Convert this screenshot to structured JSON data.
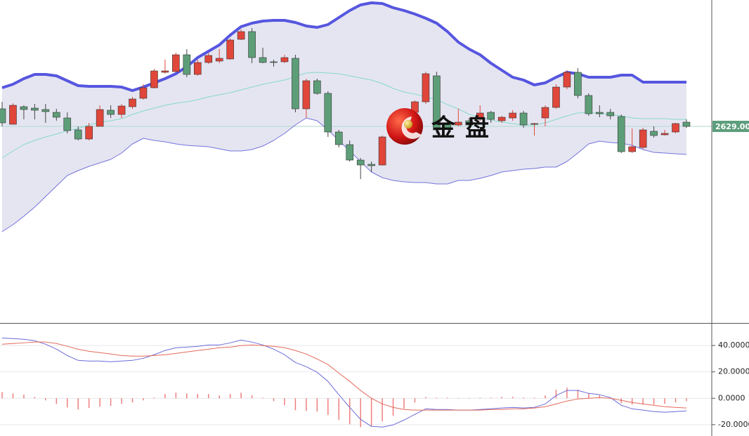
{
  "chart_data": [
    {
      "type": "candlestick",
      "ylim": [
        2349,
        2809
      ],
      "up_color": "#e0463a",
      "down_color": "#5d9e78",
      "open": [
        2654,
        2632,
        2657,
        2655,
        2653,
        2649,
        2641,
        2624,
        2611,
        2629,
        2652,
        2646,
        2657,
        2669,
        2684,
        2706,
        2707,
        2731,
        2703,
        2720,
        2722,
        2725,
        2753,
        2764,
        2727,
        2721,
        2721,
        2726,
        2654,
        2694,
        2676,
        2621,
        2603,
        2581,
        2575,
        2574,
        2614,
        2641,
        2649,
        2664,
        2701,
        2634,
        2631,
        2637,
        2639,
        2649,
        2637,
        2641,
        2648,
        2632,
        2641,
        2656,
        2685,
        2706,
        2673,
        2649,
        2649,
        2643,
        2593,
        2599,
        2622,
        2617,
        2621,
        2635
      ],
      "high": [
        2664,
        2662,
        2659,
        2661,
        2661,
        2654,
        2649,
        2629,
        2634,
        2659,
        2659,
        2661,
        2671,
        2689,
        2711,
        2724,
        2734,
        2739,
        2724,
        2734,
        2739,
        2754,
        2767,
        2769,
        2741,
        2724,
        2731,
        2731,
        2697,
        2697,
        2679,
        2624,
        2609,
        2584,
        2579,
        2616,
        2649,
        2654,
        2666,
        2707,
        2707,
        2637,
        2654,
        2641,
        2659,
        2651,
        2644,
        2652,
        2651,
        2634,
        2659,
        2689,
        2709,
        2712,
        2676,
        2659,
        2654,
        2646,
        2626,
        2627,
        2629,
        2624,
        2634,
        2639
      ],
      "low": [
        2629,
        2632,
        2639,
        2639,
        2634,
        2637,
        2619,
        2609,
        2609,
        2629,
        2641,
        2641,
        2654,
        2667,
        2683,
        2704,
        2706,
        2699,
        2701,
        2718,
        2719,
        2724,
        2752,
        2719,
        2719,
        2714,
        2719,
        2649,
        2641,
        2674,
        2614,
        2599,
        2579,
        2554,
        2564,
        2573,
        2609,
        2639,
        2647,
        2661,
        2619,
        2624,
        2629,
        2629,
        2637,
        2634,
        2634,
        2637,
        2627,
        2616,
        2629,
        2654,
        2682,
        2669,
        2644,
        2642,
        2639,
        2591,
        2591,
        2597,
        2613,
        2616,
        2619,
        2627
      ],
      "close": [
        2634,
        2659,
        2653,
        2652,
        2650,
        2642,
        2623,
        2611,
        2629,
        2653,
        2646,
        2658,
        2668,
        2684,
        2708,
        2708,
        2731,
        2703,
        2720,
        2730,
        2726,
        2752,
        2764,
        2727,
        2720,
        2720,
        2727,
        2654,
        2694,
        2676,
        2621,
        2603,
        2581,
        2574,
        2573,
        2614,
        2644,
        2651,
        2664,
        2704,
        2624,
        2627,
        2635,
        2631,
        2648,
        2639,
        2642,
        2648,
        2631,
        2633,
        2656,
        2685,
        2706,
        2673,
        2647,
        2647,
        2644,
        2593,
        2600,
        2624,
        2616,
        2619,
        2633,
        2629
      ],
      "bands": {
        "fill_color": "#e5e5f1",
        "upper": {
          "color": "#5656e0",
          "values": [
            2684,
            2689,
            2697,
            2703,
            2703,
            2701,
            2694,
            2687,
            2686,
            2686,
            2686,
            2685,
            2680,
            2685,
            2691,
            2697,
            2704,
            2714,
            2727,
            2736,
            2745,
            2759,
            2771,
            2776,
            2779,
            2780,
            2780,
            2777,
            2772,
            2770,
            2774,
            2784,
            2794,
            2802,
            2805,
            2804,
            2798,
            2794,
            2789,
            2783,
            2776,
            2764,
            2749,
            2739,
            2731,
            2719,
            2709,
            2699,
            2695,
            2688,
            2691,
            2699,
            2706,
            2704,
            2699,
            2699,
            2699,
            2702,
            2702,
            2692,
            2692,
            2692,
            2692,
            2692
          ]
        },
        "middle": {
          "color": "#86d9c9",
          "values": [
            2584,
            2594,
            2603,
            2609,
            2614,
            2618,
            2623,
            2626,
            2631,
            2635,
            2637,
            2640,
            2646,
            2651,
            2655,
            2659,
            2662,
            2664,
            2667,
            2671,
            2674,
            2677,
            2681,
            2685,
            2689,
            2692,
            2695,
            2700,
            2705,
            2706,
            2705,
            2704,
            2701,
            2698,
            2695,
            2690,
            2683,
            2678,
            2675,
            2671,
            2667,
            2660,
            2654,
            2646,
            2642,
            2638,
            2635,
            2633,
            2631,
            2631,
            2634,
            2639,
            2644,
            2648,
            2649,
            2647,
            2646,
            2644,
            2641,
            2640,
            2640,
            2640,
            2639,
            2639
          ]
        },
        "lower": {
          "color": "#7474dc",
          "values": [
            2479,
            2489,
            2501,
            2514,
            2529,
            2544,
            2559,
            2566,
            2572,
            2577,
            2582,
            2591,
            2604,
            2612,
            2609,
            2607,
            2604,
            2602,
            2601,
            2600,
            2597,
            2594,
            2594,
            2596,
            2601,
            2609,
            2619,
            2631,
            2641,
            2637,
            2624,
            2609,
            2594,
            2579,
            2564,
            2556,
            2552,
            2550,
            2549,
            2549,
            2547,
            2547,
            2552,
            2552,
            2555,
            2559,
            2564,
            2566,
            2568,
            2569,
            2571,
            2571,
            2579,
            2591,
            2604,
            2608,
            2606,
            2605,
            2602,
            2596,
            2592,
            2591,
            2590,
            2589
          ]
        }
      },
      "last_price": {
        "value": 2629,
        "label": "2629.00",
        "color": "#5d9e7c",
        "line_color": "#a9d9d0"
      },
      "watermark": "金盘"
    },
    {
      "type": "macd",
      "ylim": [
        -27,
        56
      ],
      "yticks": [
        {
          "value": 40,
          "label": "40.0000"
        },
        {
          "value": 20,
          "label": "20.0000"
        },
        {
          "value": 0,
          "label": "0.0000"
        },
        {
          "value": -20,
          "label": "-20.0000"
        }
      ],
      "grid": true,
      "series": [
        {
          "color": "#6b6bd8",
          "values": [
            45.7,
            45.2,
            44.7,
            43.6,
            41.0,
            37.2,
            32.4,
            28.7,
            28.2,
            28.2,
            27.7,
            28.2,
            28.7,
            30.3,
            33.0,
            36.2,
            38.3,
            38.8,
            39.4,
            40.4,
            40.4,
            42.0,
            44.1,
            42.6,
            40.4,
            37.2,
            33.0,
            27.1,
            23.9,
            19.7,
            12.8,
            2.7,
            -6.9,
            -16.0,
            -21.3,
            -21.8,
            -20.2,
            -16.5,
            -12.2,
            -8.0,
            -8.5,
            -8.5,
            -9.0,
            -9.0,
            -8.5,
            -8.0,
            -7.4,
            -6.9,
            -7.4,
            -6.9,
            -4.3,
            2.1,
            5.9,
            5.9,
            3.7,
            2.7,
            0.5,
            -5.3,
            -8.0,
            -9.0,
            -10.1,
            -10.6,
            -10.1,
            -9.6
          ]
        },
        {
          "color": "#e36a5a",
          "values": [
            41.0,
            41.5,
            42.0,
            42.6,
            42.6,
            41.5,
            39.4,
            37.2,
            35.6,
            34.6,
            33.5,
            32.4,
            31.9,
            31.9,
            32.4,
            33.0,
            34.0,
            35.1,
            36.2,
            37.2,
            38.3,
            38.8,
            39.9,
            40.4,
            39.9,
            39.4,
            38.3,
            36.2,
            33.5,
            29.8,
            25.5,
            19.1,
            12.8,
            5.9,
            0,
            -4.3,
            -6.9,
            -8.5,
            -9.0,
            -9.0,
            -9.0,
            -9.0,
            -9.0,
            -9.0,
            -9.0,
            -8.5,
            -8.5,
            -8.0,
            -8.0,
            -7.4,
            -6.4,
            -4.3,
            -2.1,
            -0.5,
            0,
            0.5,
            0,
            -1.6,
            -3.2,
            -4.3,
            -5.3,
            -6.4,
            -6.9,
            -7.4
          ]
        }
      ],
      "histogram": {
        "color": "#ef7f7f",
        "values": [
          4.7,
          3.7,
          2.7,
          1.0,
          -1.6,
          -4.3,
          -7.0,
          -8.5,
          -7.4,
          -6.4,
          -5.8,
          -4.2,
          -3.2,
          -1.6,
          0.6,
          3.2,
          4.3,
          3.7,
          3.2,
          3.2,
          2.1,
          3.2,
          4.2,
          2.2,
          0.5,
          -2.2,
          -5.3,
          -9.1,
          -9.6,
          -10.1,
          -12.7,
          -16.4,
          -19.7,
          -21.9,
          -21.3,
          -17.5,
          -13.3,
          -8.0,
          -3.2,
          1.0,
          0.5,
          0.5,
          0,
          0,
          0.5,
          0.5,
          1.1,
          1.1,
          0.6,
          0.5,
          2.1,
          6.4,
          8.0,
          6.4,
          3.7,
          2.2,
          0.5,
          -3.7,
          -4.8,
          -4.7,
          -4.8,
          -4.2,
          -3.2,
          -2.2
        ]
      }
    }
  ]
}
